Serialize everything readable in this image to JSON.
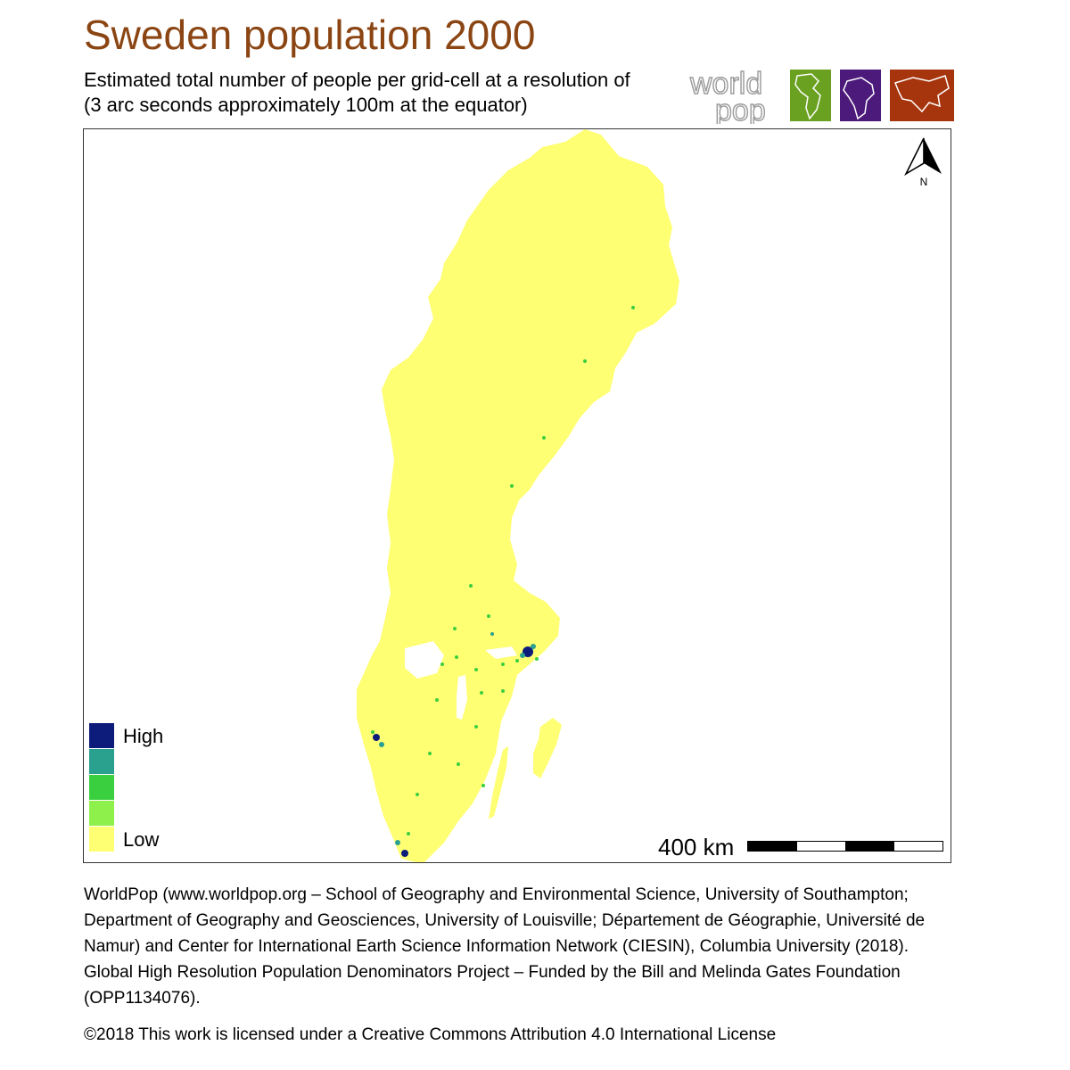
{
  "title": "Sweden population 2000",
  "subtitle_line1": "Estimated total number of people per grid-cell at a resolution of",
  "subtitle_line2": "(3 arc seconds approximately 100m at the equator)",
  "logo": {
    "text_line1": "world",
    "text_line2": "pop",
    "tiles": [
      {
        "name": "americas-tile",
        "color": "#6aa121"
      },
      {
        "name": "africa-tile",
        "color": "#4b1a7a"
      },
      {
        "name": "asia-tile",
        "color": "#a6350d"
      }
    ]
  },
  "north_arrow": {
    "label": "N"
  },
  "legend": {
    "high_label": "High",
    "low_label": "Low",
    "colors": [
      "#0d1b7a",
      "#2aa08f",
      "#3acf3e",
      "#8ef04a",
      "#ffff73"
    ]
  },
  "map": {
    "land_color": "#ffff73",
    "country": "Sweden"
  },
  "scale_bar": {
    "label": "400 km",
    "segments": [
      "black",
      "white",
      "black",
      "white"
    ]
  },
  "credits": "WorldPop (www.worldpop.org – School of Geography and Environmental Science, University of Southampton; Department of Geography and Geosciences, University of Louisville; Département de Géographie, Université de Namur) and Center for International Earth Science Information Network (CIESIN), Columbia University (2018). Global High Resolution Population Denominators Project – Funded by the Bill and Melinda Gates Foundation (OPP1134076).",
  "license": "©2018 This work is licensed under a Creative Commons Attribution 4.0 International License"
}
